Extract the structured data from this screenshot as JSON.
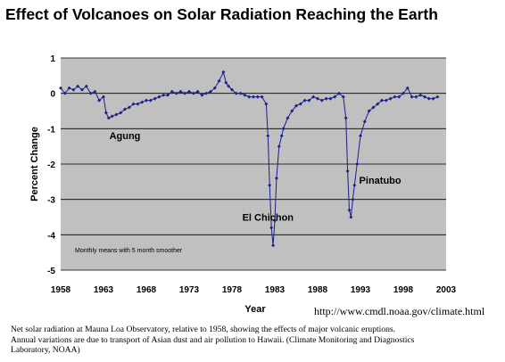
{
  "title": "Effect of Volcanoes on Solar Radiation Reaching the Earth",
  "url": "http://www.cmdl.noaa.gov/climate.html",
  "caption": [
    "Net solar radiation at Mauna Loa Observatory, relative to 1958, showing the effects of major volcanic eruptions.",
    "Annual variations are due to transport of Asian dust and air pollution to Hawaii. (Climate Monitoring and Diagnostics",
    "Laboratory, NOAA)"
  ],
  "chart_data": {
    "type": "scatter",
    "xlabel": "Year",
    "ylabel": "Percent Change",
    "xlim": [
      1958,
      2003
    ],
    "ylim": [
      -5,
      1
    ],
    "x_ticks": [
      "1958",
      "1963",
      "1968",
      "1973",
      "1978",
      "1983",
      "1988",
      "1993",
      "1998",
      "2003"
    ],
    "y_ticks": [
      "1",
      "0",
      "-1",
      "-2",
      "-3",
      "-4",
      "-5"
    ],
    "plot_background": "#c0c0c0",
    "series_color": "#1a1f8c",
    "note": "Monthly means with 5 month smoother",
    "annotations": [
      {
        "text": "Agung",
        "x": 1965.5,
        "y": -1.3
      },
      {
        "text": "El Chichon",
        "x": 1982.2,
        "y": -3.6
      },
      {
        "text": "Pinatubo",
        "x": 1995.3,
        "y": -2.55
      }
    ],
    "series": [
      {
        "x": [
          1958.0,
          1958.5,
          1959.0,
          1959.5,
          1960.0,
          1960.5,
          1961.0,
          1961.5,
          1962.0,
          1962.5,
          1963.0,
          1963.3,
          1963.6,
          1964.0,
          1964.5,
          1965.0,
          1965.5,
          1966.0,
          1966.5,
          1967.0,
          1967.5,
          1968.0,
          1968.5,
          1969.0,
          1969.5,
          1970.0,
          1970.5,
          1971.0,
          1971.5,
          1972.0,
          1972.5,
          1973.0,
          1973.5,
          1974.0,
          1974.5,
          1975.0,
          1975.5,
          1976.0,
          1976.5,
          1977.0,
          1977.3,
          1977.6,
          1978.0,
          1978.5,
          1979.0,
          1979.5,
          1980.0,
          1980.5,
          1981.0,
          1981.5,
          1982.0,
          1982.2,
          1982.4,
          1982.6,
          1982.8,
          1983.0,
          1983.2,
          1983.5,
          1983.8,
          1984.0,
          1984.5,
          1985.0,
          1985.5,
          1986.0,
          1986.5,
          1987.0,
          1987.5,
          1988.0,
          1988.5,
          1989.0,
          1989.5,
          1990.0,
          1990.5,
          1991.0,
          1991.3,
          1991.5,
          1991.7,
          1991.9,
          1992.1,
          1992.3,
          1992.6,
          1993.0,
          1993.5,
          1994.0,
          1994.5,
          1995.0,
          1995.5,
          1996.0,
          1996.5,
          1997.0,
          1997.5,
          1998.0,
          1998.5,
          1999.0,
          1999.5,
          2000.0,
          2000.5,
          2001.0,
          2001.5,
          2002.0
        ],
        "y": [
          0.15,
          0.0,
          0.15,
          0.1,
          0.2,
          0.1,
          0.2,
          0.0,
          0.05,
          -0.2,
          -0.1,
          -0.55,
          -0.7,
          -0.65,
          -0.6,
          -0.55,
          -0.45,
          -0.4,
          -0.3,
          -0.3,
          -0.25,
          -0.2,
          -0.2,
          -0.15,
          -0.1,
          -0.05,
          -0.05,
          0.05,
          0.0,
          0.05,
          0.0,
          0.05,
          0.0,
          0.05,
          -0.05,
          0.0,
          0.05,
          0.15,
          0.35,
          0.6,
          0.3,
          0.2,
          0.1,
          0.0,
          0.0,
          -0.05,
          -0.1,
          -0.1,
          -0.1,
          -0.1,
          -0.3,
          -1.2,
          -2.6,
          -3.8,
          -4.3,
          -3.6,
          -2.4,
          -1.5,
          -1.2,
          -1.0,
          -0.7,
          -0.5,
          -0.35,
          -0.3,
          -0.2,
          -0.2,
          -0.1,
          -0.15,
          -0.2,
          -0.15,
          -0.15,
          -0.1,
          0.0,
          -0.1,
          -0.7,
          -2.2,
          -3.3,
          -3.5,
          -3.0,
          -2.6,
          -2.0,
          -1.2,
          -0.8,
          -0.5,
          -0.4,
          -0.3,
          -0.2,
          -0.2,
          -0.15,
          -0.1,
          -0.1,
          0.0,
          0.15,
          -0.1,
          -0.1,
          -0.05,
          -0.1,
          -0.15,
          -0.15,
          -0.1
        ]
      }
    ]
  }
}
